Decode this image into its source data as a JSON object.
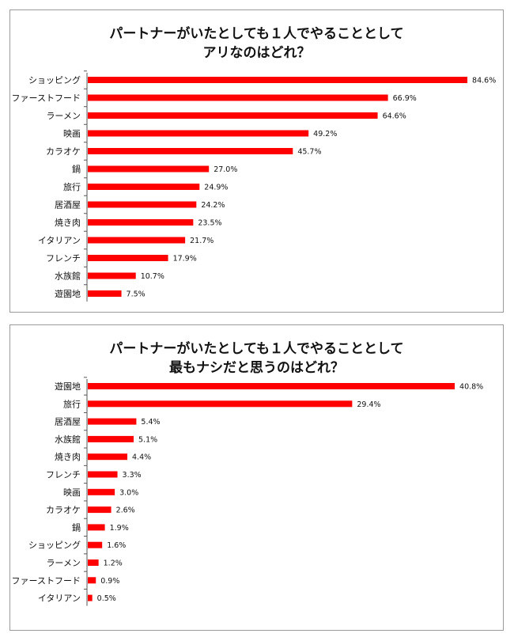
{
  "chart_data": [
    {
      "type": "bar",
      "orientation": "horizontal",
      "title": "パートナーがいたとしても１人でやることとして\nアリなのはどれ？",
      "categories": [
        "ショッピング",
        "ファーストフード",
        "ラーメン",
        "映画",
        "カラオケ",
        "鍋",
        "旅行",
        "居酒屋",
        "焼き肉",
        "イタリアン",
        "フレンチ",
        "水族館",
        "遊園地"
      ],
      "values": [
        84.6,
        66.9,
        64.6,
        49.2,
        45.7,
        27.0,
        24.9,
        24.2,
        23.5,
        21.7,
        17.9,
        10.7,
        7.5
      ],
      "value_labels": [
        "84.6%",
        "66.9%",
        "64.6%",
        "49.2%",
        "45.7%",
        "27.0%",
        "24.9%",
        "24.2%",
        "23.5%",
        "21.7%",
        "17.9%",
        "10.7%",
        "7.5%"
      ],
      "xlim": [
        0,
        86
      ],
      "bar_color": "#ff0000",
      "grid": false,
      "legend": "none"
    },
    {
      "type": "bar",
      "orientation": "horizontal",
      "title": "パートナーがいたとしても１人でやることとして\n最もナシだと思うのはどれ？",
      "categories": [
        "遊園地",
        "旅行",
        "居酒屋",
        "水族館",
        "焼き肉",
        "フレンチ",
        "映画",
        "カラオケ",
        "鍋",
        "ショッピング",
        "ラーメン",
        "ファーストフード",
        "イタリアン"
      ],
      "values": [
        40.8,
        29.4,
        5.4,
        5.1,
        4.4,
        3.3,
        3.0,
        2.6,
        1.9,
        1.6,
        1.2,
        0.9,
        0.5
      ],
      "value_labels": [
        "40.8%",
        "29.4%",
        "5.4%",
        "5.1%",
        "4.4%",
        "3.3%",
        "3.0%",
        "2.6%",
        "1.9%",
        "1.6%",
        "1.2%",
        "0.9%",
        "0.5%"
      ],
      "xlim": [
        0,
        41.5
      ],
      "bar_color": "#ff0000",
      "grid": false,
      "legend": "none"
    }
  ]
}
